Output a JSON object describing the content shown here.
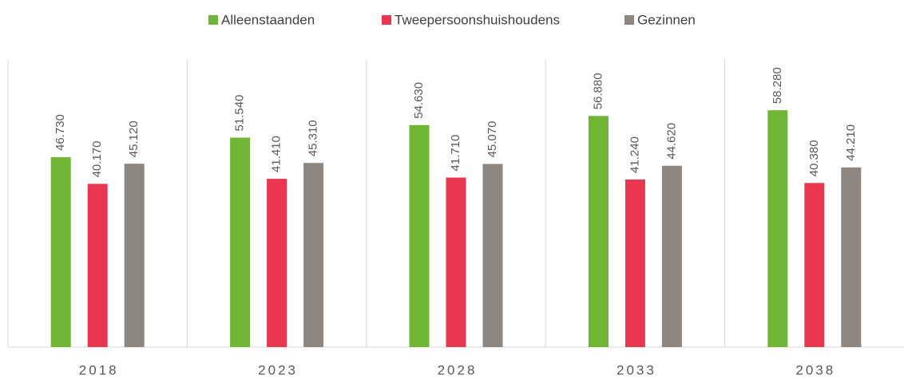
{
  "chart_data": {
    "type": "bar",
    "categories": [
      "2018",
      "2023",
      "2028",
      "2033",
      "2038"
    ],
    "series": [
      {
        "name": "Alleenstaanden",
        "color": "#70b536",
        "values": [
          46730,
          51540,
          54630,
          56880,
          58280
        ],
        "value_labels": [
          "46.730",
          "51.540",
          "54.630",
          "56.880",
          "58.280"
        ]
      },
      {
        "name": "Tweepersoonshuishoudens",
        "color": "#e8374f",
        "values": [
          40170,
          41410,
          41710,
          41240,
          40380
        ],
        "value_labels": [
          "40.170",
          "41.410",
          "41.710",
          "41.240",
          "40.380"
        ]
      },
      {
        "name": "Gezinnen",
        "color": "#8e8680",
        "values": [
          45120,
          45310,
          45070,
          44620,
          44210
        ],
        "value_labels": [
          "45.120",
          "45.310",
          "45.070",
          "44.620",
          "44.210"
        ]
      }
    ],
    "legend": "top"
  }
}
